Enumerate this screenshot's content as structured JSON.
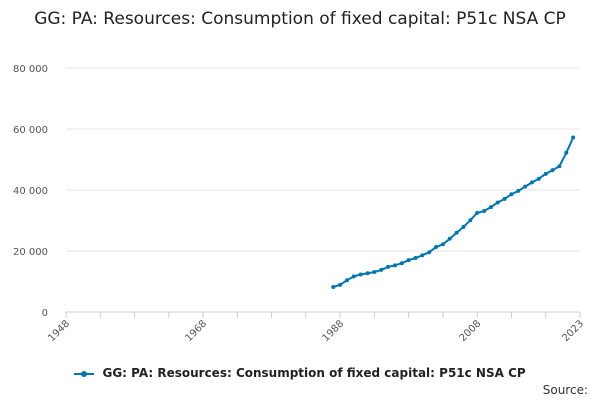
{
  "title": "GG: PA: Resources: Consumption of fixed capital: P51c NSA CP",
  "source_label": "Source:",
  "colors": {
    "series": "#0077b3",
    "grid": "#e6e6e6",
    "axis": "#cccccc"
  },
  "chart_data": {
    "type": "line",
    "title": "GG: PA: Resources: Consumption of fixed capital: P51c NSA CP",
    "xlim": [
      1948,
      2023
    ],
    "ylim": [
      0,
      80000
    ],
    "x_ticks": [
      1948,
      1968,
      1988,
      2008,
      2023
    ],
    "x_tick_labels": [
      "1948",
      "1968",
      "1988",
      "2008",
      "2023"
    ],
    "y_ticks": [
      0,
      20000,
      40000,
      60000,
      80000
    ],
    "y_tick_labels": [
      "0",
      "20 000",
      "40 000",
      "60 000",
      "80 000"
    ],
    "grid": true,
    "legend_position": "bottom",
    "series": [
      {
        "name": "GG: PA: Resources: Consumption of fixed capital: P51c NSA CP",
        "color": "#0077b3",
        "x": [
          1987,
          1988,
          1989,
          1990,
          1991,
          1992,
          1993,
          1994,
          1995,
          1996,
          1997,
          1998,
          1999,
          2000,
          2001,
          2002,
          2003,
          2004,
          2005,
          2006,
          2007,
          2008,
          2009,
          2010,
          2011,
          2012,
          2013,
          2014,
          2015,
          2016,
          2017,
          2018,
          2019,
          2020,
          2021,
          2022,
          2023
        ],
        "values": [
          8200,
          8900,
          10400,
          11700,
          12300,
          12700,
          13100,
          13800,
          14800,
          15300,
          16000,
          17000,
          17700,
          18600,
          19600,
          21300,
          22200,
          24000,
          26000,
          27900,
          30100,
          32500,
          33100,
          34400,
          35900,
          37100,
          38600,
          39700,
          41100,
          42500,
          43700,
          45300,
          46500,
          47800,
          52200,
          57200,
          null
        ]
      }
    ]
  }
}
